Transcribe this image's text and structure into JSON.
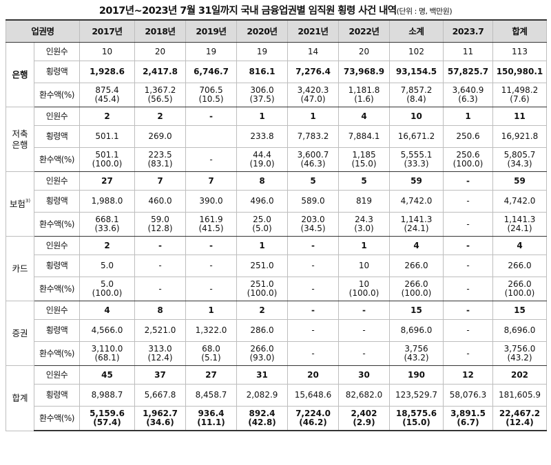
{
  "title": "2017년~2023년 7월 31일까지 국내 금융업권별 임직원 횡령 사건 내역",
  "unit": "(단위 : 명, 백만원)",
  "header": [
    "업권명",
    "2017년",
    "2018년",
    "2019년",
    "2020년",
    "2021년",
    "2022년",
    "소계",
    "2023.7",
    "합계"
  ],
  "metrics": [
    "인원수",
    "횡령액",
    "환수액(%)"
  ],
  "groups": [
    {
      "name": "은행",
      "bold": true,
      "rows": [
        {
          "bold": false,
          "cells": [
            "10",
            "20",
            "19",
            "19",
            "14",
            "20",
            "102",
            "11",
            "113"
          ]
        },
        {
          "bold": true,
          "cells": [
            "1,928.6",
            "2,417.8",
            "6,746.7",
            "816.1",
            "7,276.4",
            "73,968.9",
            "93,154.5",
            "57,825.7",
            "150,980.1"
          ]
        },
        {
          "bold": false,
          "cells": [
            [
              "875.4",
              "(45.4)"
            ],
            [
              "1,367.2",
              "(56.5)"
            ],
            [
              "706.5",
              "(10.5)"
            ],
            [
              "306.0",
              "(37.5)"
            ],
            [
              "3,420.3",
              "(47.0)"
            ],
            [
              "1,181.8",
              "(1.6)"
            ],
            [
              "7,857.2",
              "(8.4)"
            ],
            [
              "3,640.9",
              "(6.3)"
            ],
            [
              "11,498.2",
              "(7.6)"
            ]
          ]
        }
      ]
    },
    {
      "name": "저축\n은행",
      "bold": false,
      "rows": [
        {
          "bold": true,
          "cells": [
            "2",
            "2",
            "-",
            "1",
            "1",
            "4",
            "10",
            "1",
            "11"
          ]
        },
        {
          "bold": false,
          "cells": [
            "501.1",
            "269.0",
            "",
            "233.8",
            "7,783.2",
            "7,884.1",
            "16,671.2",
            "250.6",
            "16,921.8"
          ]
        },
        {
          "bold": false,
          "cells": [
            [
              "501.1",
              "(100.0)"
            ],
            [
              "223.5",
              "(83.1)"
            ],
            [
              "-",
              ""
            ],
            [
              "44.4",
              "(19.0)"
            ],
            [
              "3,600.7",
              "(46.3)"
            ],
            [
              "1,185",
              "(15.0)"
            ],
            [
              "5,555.1",
              "(33.3)"
            ],
            [
              "250.6",
              "(100.0)"
            ],
            [
              "5,805.7",
              "(34.3)"
            ]
          ]
        }
      ]
    },
    {
      "name": "보험",
      "sup": "3)",
      "bold": false,
      "rows": [
        {
          "bold": true,
          "cells": [
            "27",
            "7",
            "7",
            "8",
            "5",
            "5",
            "59",
            "-",
            "59"
          ]
        },
        {
          "bold": false,
          "cells": [
            "1,988.0",
            "460.0",
            "390.0",
            "496.0",
            "589.0",
            "819",
            "4,742.0",
            "-",
            "4,742.0"
          ]
        },
        {
          "bold": false,
          "cells": [
            [
              "668.1",
              "(33.6)"
            ],
            [
              "59.0",
              "(12.8)"
            ],
            [
              "161.9",
              "(41.5)"
            ],
            [
              "25.0",
              "(5.0)"
            ],
            [
              "203.0",
              "(34.5)"
            ],
            [
              "24.3",
              "(3.0)"
            ],
            [
              "1,141.3",
              "(24.1)"
            ],
            [
              "-",
              ""
            ],
            [
              "1,141.3",
              "(24.1)"
            ]
          ]
        }
      ]
    },
    {
      "name": "카드",
      "bold": false,
      "rows": [
        {
          "bold": true,
          "cells": [
            "2",
            "-",
            "-",
            "1",
            "-",
            "1",
            "4",
            "-",
            "4"
          ]
        },
        {
          "bold": false,
          "cells": [
            "5.0",
            "-",
            "-",
            "251.0",
            "-",
            "10",
            "266.0",
            "-",
            "266.0"
          ]
        },
        {
          "bold": false,
          "cells": [
            [
              "5.0",
              "(100.0)"
            ],
            [
              "-",
              ""
            ],
            [
              "-",
              ""
            ],
            [
              "251.0",
              "(100.0)"
            ],
            [
              "-",
              ""
            ],
            [
              "10",
              "(100.0)"
            ],
            [
              "266.0",
              "(100.0)"
            ],
            [
              "-",
              ""
            ],
            [
              "266.0",
              "(100.0)"
            ]
          ]
        }
      ]
    },
    {
      "name": "증권",
      "bold": false,
      "rows": [
        {
          "bold": true,
          "cells": [
            "4",
            "8",
            "1",
            "2",
            "-",
            "-",
            "15",
            "-",
            "15"
          ]
        },
        {
          "bold": false,
          "cells": [
            "4,566.0",
            "2,521.0",
            "1,322.0",
            "286.0",
            "-",
            "-",
            "8,696.0",
            "-",
            "8,696.0"
          ]
        },
        {
          "bold": false,
          "cells": [
            [
              "3,110.0",
              "(68.1)"
            ],
            [
              "313.0",
              "(12.4)"
            ],
            [
              "68.0",
              "(5.1)"
            ],
            [
              "266.0",
              "(93.0)"
            ],
            [
              "-",
              ""
            ],
            [
              "-",
              ""
            ],
            [
              "3,756",
              "(43.2)"
            ],
            [
              "-",
              ""
            ],
            [
              "3,756.0",
              "(43.2)"
            ]
          ]
        }
      ]
    },
    {
      "name": "합계",
      "bold": false,
      "rows": [
        {
          "bold": true,
          "cells": [
            "45",
            "37",
            "27",
            "31",
            "20",
            "30",
            "190",
            "12",
            "202"
          ]
        },
        {
          "bold": false,
          "cells": [
            "8,988.7",
            "5,667.8",
            "8,458.7",
            "2,082.9",
            "15,648.6",
            "82,682.0",
            "123,529.7",
            "58,076.3",
            "181,605.9"
          ]
        },
        {
          "bold": true,
          "cells": [
            [
              "5,159.6",
              "(57.4)"
            ],
            [
              "1,962.7",
              "(34.6)"
            ],
            [
              "936.4",
              "(11.1)"
            ],
            [
              "892.4",
              "(42.8)"
            ],
            [
              "7,224.0",
              "(46.2)"
            ],
            [
              "2,402",
              "(2.9)"
            ],
            [
              "18,575.6",
              "(15.0)"
            ],
            [
              "3,891.5",
              "(6.7)"
            ],
            [
              "22,467.2",
              "(12.4)"
            ]
          ]
        }
      ]
    }
  ]
}
